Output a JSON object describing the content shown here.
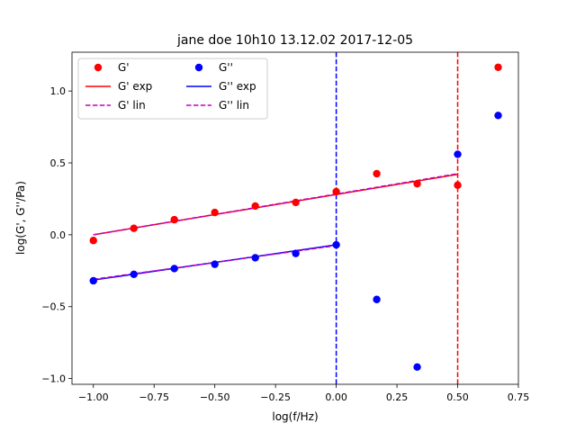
{
  "chart_data": {
    "type": "scatter",
    "title": "jane doe 10h10 13.12.02 2017-12-05",
    "xlabel": "log(f/Hz)",
    "ylabel": "log(G', G''/Pa)",
    "xlim": [
      -1.088,
      0.75
    ],
    "ylim": [
      -1.04,
      1.27
    ],
    "xticks": [
      -1.0,
      -0.75,
      -0.5,
      -0.25,
      0.0,
      0.25,
      0.5,
      0.75
    ],
    "xtick_labels": [
      "−1.00",
      "−0.75",
      "−0.50",
      "−0.25",
      "0.00",
      "0.25",
      "0.50",
      "0.75"
    ],
    "yticks": [
      -1.0,
      -0.5,
      0.0,
      0.5,
      1.0
    ],
    "ytick_labels": [
      "−1.0",
      "−0.5",
      "0.0",
      "0.5",
      "1.0"
    ],
    "grid": false,
    "legend_position": "top-left",
    "series": [
      {
        "name": "G'",
        "kind": "points",
        "color": "#ff0000",
        "x": [
          -1.0,
          -0.8333,
          -0.6667,
          -0.5,
          -0.3333,
          -0.1667,
          0.0,
          0.1667,
          0.3333,
          0.5,
          0.6667
        ],
        "y": [
          -0.04,
          0.045,
          0.105,
          0.155,
          0.2,
          0.225,
          0.3,
          0.425,
          0.355,
          0.345,
          1.165
        ]
      },
      {
        "name": "G''",
        "kind": "points",
        "color": "#0000ff",
        "x": [
          -1.0,
          -0.8333,
          -0.6667,
          -0.5,
          -0.3333,
          -0.1667,
          0.0,
          0.1667,
          0.3333,
          0.5,
          0.6667
        ],
        "y": [
          -0.32,
          -0.275,
          -0.235,
          -0.205,
          -0.16,
          -0.13,
          -0.07,
          -0.45,
          -0.92,
          0.56,
          0.83
        ]
      },
      {
        "name": "G' exp",
        "kind": "line",
        "color": "#ff0000",
        "dash": "solid",
        "x": [
          -1.0,
          0.5
        ],
        "y": [
          0.0,
          0.42
        ]
      },
      {
        "name": "G'' exp",
        "kind": "line",
        "color": "#0000ff",
        "dash": "solid",
        "x": [
          -1.0,
          0.0
        ],
        "y": [
          -0.315,
          -0.07
        ]
      },
      {
        "name": "G' lin",
        "kind": "line",
        "color": "#bf00bf",
        "dash": "dashed",
        "x": [
          -1.0,
          0.5
        ],
        "y": [
          0.0,
          0.425
        ]
      },
      {
        "name": "G'' lin",
        "kind": "line",
        "color": "#bf00bf",
        "dash": "dashed",
        "x": [
          -1.0,
          0.0
        ],
        "y": [
          -0.31,
          -0.075
        ]
      }
    ],
    "vertical_lines": [
      {
        "x": 0.0,
        "color": "#0000ff",
        "dash": "dashed"
      },
      {
        "x": 0.5,
        "color": "#ff0000",
        "dash": "dashed"
      }
    ],
    "legend_order": [
      "G'",
      "G' exp",
      "G' lin",
      "G''",
      "G'' exp",
      "G'' lin"
    ]
  }
}
